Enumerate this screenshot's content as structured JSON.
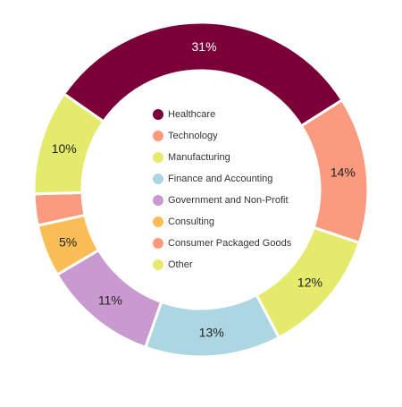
{
  "chart_data": {
    "type": "pie",
    "variant": "donut",
    "legend_position": "center",
    "categories": [
      "Healthcare",
      "Technology",
      "Manufacturing",
      "Finance and Accounting",
      "Government and Non-Profit",
      "Consulting",
      "Consumer Packaged Goods",
      "Other"
    ],
    "slices": [
      {
        "name": "Healthcare",
        "value": 31,
        "label": "31%",
        "color": "#7b0038",
        "label_color": "#ffffff"
      },
      {
        "name": "Technology",
        "value": 14,
        "label": "14%",
        "color": "#fa9a7e",
        "label_color": "#222222"
      },
      {
        "name": "Manufacturing",
        "value": 12,
        "label": "12%",
        "color": "#e4ea6b",
        "label_color": "#222222"
      },
      {
        "name": "Finance and Accounting",
        "value": 13,
        "label": "13%",
        "color": "#acd6e2",
        "label_color": "#222222"
      },
      {
        "name": "Government and Non-Profit",
        "value": 11,
        "label": "11%",
        "color": "#c99acf",
        "label_color": "#222222"
      },
      {
        "name": "Consulting",
        "value": 5,
        "label": "5%",
        "color": "#fbbd55",
        "label_color": "#222222"
      },
      {
        "name": "Consumer Packaged Goods",
        "value": 3,
        "label": "",
        "color": "#fa9a7e",
        "label_color": "#222222"
      },
      {
        "name": "Other",
        "value": 10,
        "label": "10%",
        "color": "#e4ea6b",
        "label_color": "#222222"
      }
    ]
  }
}
